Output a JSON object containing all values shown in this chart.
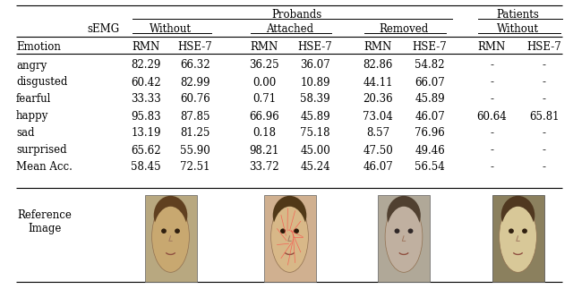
{
  "title": "",
  "bg_color": "#ffffff",
  "text_color": "#000000",
  "line_color": "#000000",
  "font_size": 8.5,
  "rows": [
    [
      "angry",
      "82.29",
      "66.32",
      "36.25",
      "36.07",
      "82.86",
      "54.82",
      "-",
      "-"
    ],
    [
      "disgusted",
      "60.42",
      "82.99",
      "0.00",
      "10.89",
      "44.11",
      "66.07",
      "-",
      "-"
    ],
    [
      "fearful",
      "33.33",
      "60.76",
      "0.71",
      "58.39",
      "20.36",
      "45.89",
      "-",
      "-"
    ],
    [
      "happy",
      "95.83",
      "87.85",
      "66.96",
      "45.89",
      "73.04",
      "46.07",
      "60.64",
      "65.81"
    ],
    [
      "sad",
      "13.19",
      "81.25",
      "0.18",
      "75.18",
      "8.57",
      "76.96",
      "-",
      "-"
    ],
    [
      "surprised",
      "65.62",
      "55.90",
      "98.21",
      "45.00",
      "47.50",
      "49.46",
      "-",
      "-"
    ],
    [
      "Mean Acc.",
      "58.45",
      "72.51",
      "33.72",
      "45.24",
      "46.07",
      "56.54",
      "-",
      "-"
    ]
  ],
  "ref_label": "Reference\nImage",
  "face_colors": [
    [
      "#b8a070",
      "#a07850",
      "#906040"
    ],
    [
      "#c0a888",
      "#e8c0a0",
      "#a08060"
    ],
    [
      "#a09080",
      "#c0b0a0",
      "#908070"
    ],
    [
      "#c8b090",
      "#e0c8a8",
      "#b09070"
    ]
  ]
}
